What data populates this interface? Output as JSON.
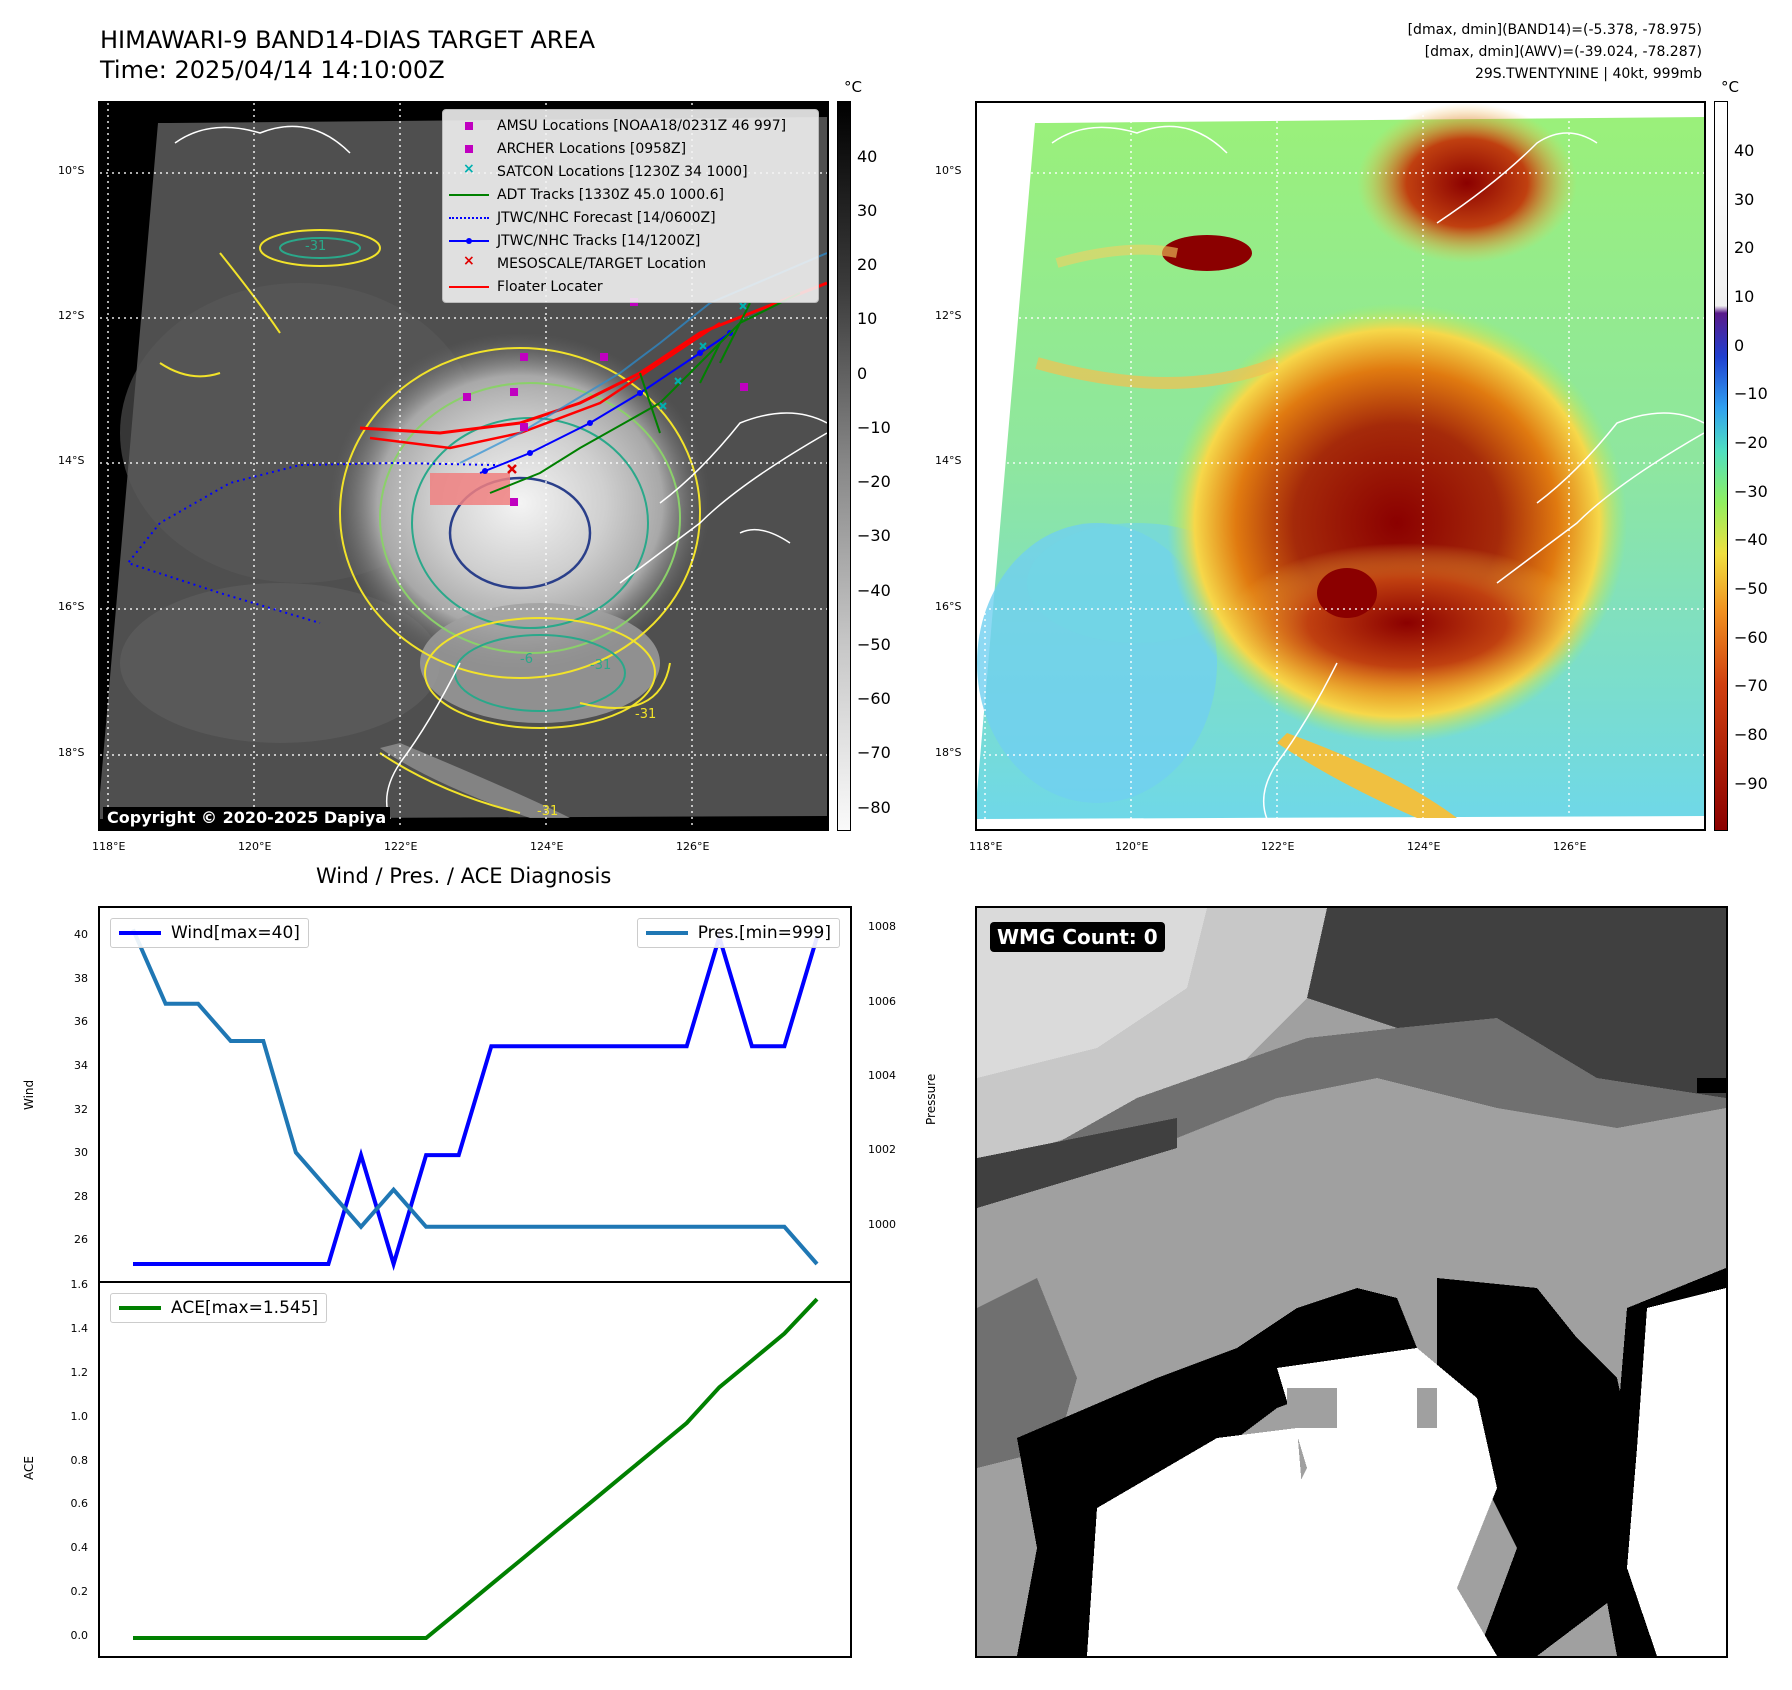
{
  "header": {
    "title_line1": "HIMAWARI-9 BAND14-DIAS TARGET AREA",
    "title_line2": "Time: 2025/04/14 14:10:00Z",
    "right_line1": "[dmax, dmin](BAND14)=(-5.378, -78.975)",
    "right_line2": "[dmax, dmin](AWV)=(-39.024, -78.287)",
    "right_line3": "29S.TWENTYNINE | 40kt, 999mb"
  },
  "map": {
    "lon_labels": [
      "118°E",
      "120°E",
      "122°E",
      "124°E",
      "126°E"
    ],
    "lat_labels": [
      "10°S",
      "12°S",
      "14°S",
      "16°S",
      "18°S"
    ],
    "copyright": "Copyright © 2020-2025 Dapiya",
    "legend": [
      {
        "label": "AMSU Locations [NOAA18/0231Z 46 997]",
        "marker": "square",
        "color": "#c000c0"
      },
      {
        "label": "ARCHER Locations [0958Z]",
        "marker": "square",
        "color": "#c000c0"
      },
      {
        "label": "SATCON Locations [1230Z 34 1000]",
        "marker": "x",
        "color": "#00b0b0"
      },
      {
        "label": "ADT Tracks [1330Z 45.0 1000.6]",
        "marker": "line",
        "color": "#008000"
      },
      {
        "label": "JTWC/NHC Forecast [14/0600Z]",
        "marker": "dotted",
        "color": "#0000ff"
      },
      {
        "label": "JTWC/NHC Tracks [14/1200Z]",
        "marker": "line-dot",
        "color": "#0000ff"
      },
      {
        "label": "MESOSCALE/TARGET Location",
        "marker": "x",
        "color": "#e00000"
      },
      {
        "label": "Floater Locater",
        "marker": "line",
        "color": "#ff0000"
      }
    ],
    "contour_labels": [
      "-31",
      "-31",
      "-31",
      "-6",
      "-31"
    ]
  },
  "colorbar_gray": {
    "unit": "°C",
    "ticks": [
      "40",
      "30",
      "20",
      "10",
      "0",
      "−10",
      "−20",
      "−30",
      "−40",
      "−50",
      "−60",
      "−70",
      "−80"
    ]
  },
  "colorbar_color": {
    "unit": "°C",
    "ticks": [
      "40",
      "30",
      "20",
      "10",
      "0",
      "−10",
      "−20",
      "−30",
      "−40",
      "−50",
      "−60",
      "−70",
      "−80",
      "−90"
    ]
  },
  "wind_panel": {
    "title": "Wind / Pres. / ACE Diagnosis",
    "ylabel_left": "Wind",
    "ylabel_right": "Pressure",
    "wind_legend": "Wind[max=40]",
    "pres_legend": "Pres.[min=999]",
    "wind_ticks": [
      "26",
      "28",
      "30",
      "32",
      "34",
      "36",
      "38",
      "40"
    ],
    "pres_ticks": [
      "1000",
      "1002",
      "1004",
      "1006",
      "1008"
    ]
  },
  "ace_panel": {
    "ylabel": "ACE",
    "legend": "ACE[max=1.545]",
    "ticks": [
      "0.0",
      "0.2",
      "0.4",
      "0.6",
      "0.8",
      "1.0",
      "1.2",
      "1.4",
      "1.6"
    ]
  },
  "wmg": {
    "label": "WMG Count: 0"
  },
  "chart_data": [
    {
      "type": "line",
      "title": "Wind / Pres. / ACE Diagnosis",
      "x": [
        0,
        1,
        2,
        3,
        4,
        5,
        6,
        7,
        8,
        9,
        10,
        11,
        12,
        13,
        14,
        15,
        16,
        17,
        18,
        19,
        20,
        21
      ],
      "series": [
        {
          "name": "Wind[max=40]",
          "color": "#0000ff",
          "axis": "left",
          "values": [
            25,
            25,
            25,
            25,
            25,
            25,
            25,
            30,
            25,
            30,
            30,
            35,
            35,
            35,
            35,
            35,
            35,
            35,
            40,
            35,
            35,
            40
          ]
        },
        {
          "name": "Pres.[min=999]",
          "color": "#1f77b4",
          "axis": "right",
          "values": [
            1008,
            1006,
            1006,
            1005,
            1005,
            1002,
            1001,
            1000,
            1001,
            1000,
            1000,
            1000,
            1000,
            1000,
            1000,
            1000,
            1000,
            1000,
            1000,
            1000,
            1000,
            999
          ]
        }
      ],
      "ylabel": "Wind",
      "ylim": [
        25,
        40.7
      ],
      "y2label": "Pressure",
      "y2lim": [
        999,
        1008.2
      ]
    },
    {
      "type": "line",
      "x": [
        0,
        1,
        2,
        3,
        4,
        5,
        6,
        7,
        8,
        9,
        10,
        11,
        12,
        13,
        14,
        15,
        16,
        17,
        18,
        19,
        20,
        21
      ],
      "series": [
        {
          "name": "ACE[max=1.545]",
          "color": "#008000",
          "values": [
            0,
            0,
            0,
            0,
            0,
            0,
            0,
            0,
            0,
            0,
            0.122,
            0.245,
            0.367,
            0.49,
            0.612,
            0.735,
            0.857,
            0.98,
            1.143,
            1.265,
            1.388,
            1.545
          ]
        }
      ],
      "ylabel": "ACE",
      "ylim": [
        -0.05,
        1.6
      ]
    }
  ]
}
